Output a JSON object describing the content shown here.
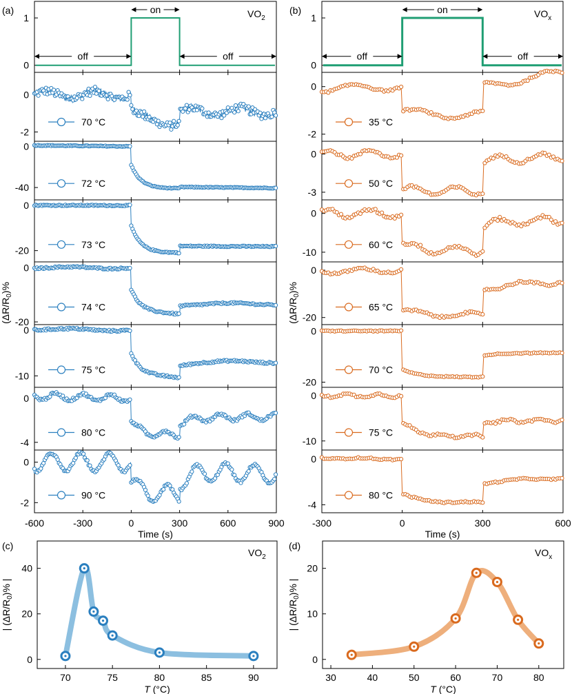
{
  "colors": {
    "vo2": "#2a7fbf",
    "vox": "#d96a1e",
    "gate": "#1f9e73",
    "vo2_line": "#8cbfe0",
    "vox_line": "#eeaf7c"
  },
  "chart_data": [
    {
      "id": "a",
      "type": "line",
      "panel_label": "(a)",
      "material": "VO",
      "material_sub": "2",
      "xlabel": "Time (s)",
      "ylabel_pre": "(ΔR/R",
      "ylabel_sub": "0",
      "ylabel_post": ")%",
      "xlim": [
        -600,
        900
      ],
      "xticks": [
        -600,
        -300,
        0,
        300,
        600,
        900
      ],
      "xtick_labels": [
        "-600",
        "-300",
        "0",
        "300",
        "600",
        "900"
      ],
      "on_window": [
        0,
        300
      ],
      "gate": {
        "ylim": [
          -0.15,
          1.35
        ],
        "yticks": [
          0,
          1
        ],
        "ytick_labels": [
          "0",
          "1"
        ],
        "labels": {
          "on": "on",
          "off": "off"
        }
      },
      "series": [
        {
          "name": "70 °C",
          "legend": "70 °C",
          "ylim": [
            -2.5,
            1.2
          ],
          "yticks": [
            0,
            -2
          ],
          "ytick_labels": [
            "0",
            "-2"
          ],
          "step_on": -0.7,
          "relax": 0.15,
          "final_on": -1.5,
          "step_off": 0.6,
          "post_relax": 0.0,
          "noise": 0.22,
          "drift": [
            0,
            0
          ],
          "wave": 0.2,
          "wave_period": 300
        },
        {
          "name": "72 °C",
          "legend": "72 °C",
          "ylim": [
            -52,
            5
          ],
          "yticks": [
            0,
            -40
          ],
          "ytick_labels": [
            "0",
            "-40"
          ],
          "step_on": -18,
          "relax": 0.22,
          "final_on": -41,
          "step_off": 1.5,
          "post_relax": 0.0,
          "noise": 0.4,
          "drift": [
            2,
            -1
          ],
          "wave": 0,
          "wave_period": 300
        },
        {
          "name": "73 °C",
          "legend": "73 °C",
          "ylim": [
            -25,
            2.5
          ],
          "yticks": [
            0,
            -20
          ],
          "ytick_labels": [
            "0",
            "-20"
          ],
          "step_on": -9,
          "relax": 0.2,
          "final_on": -21,
          "step_off": 3,
          "post_relax": 0.0,
          "noise": 0.25,
          "drift": [
            0.2,
            -0.2
          ],
          "wave": 0,
          "wave_period": 300
        },
        {
          "name": "74 °C",
          "legend": "74 °C",
          "ylim": [
            -21,
            2.2
          ],
          "yticks": [
            0,
            -20
          ],
          "ytick_labels": [
            "0",
            "-20"
          ],
          "step_on": -8,
          "relax": 0.2,
          "final_on": -17,
          "step_off": 3,
          "post_relax": 0.8,
          "noise": 0.3,
          "drift": [
            0.2,
            -0.2
          ],
          "wave": 0.3,
          "wave_period": 500
        },
        {
          "name": "75 °C",
          "legend": "75 °C",
          "ylim": [
            -12.5,
            1.2
          ],
          "yticks": [
            0,
            -10
          ],
          "ytick_labels": [
            "0",
            "-10"
          ],
          "step_on": -5,
          "relax": 0.2,
          "final_on": -10.3,
          "step_off": 2.5,
          "post_relax": 1.0,
          "noise": 0.2,
          "drift": [
            0.4,
            -0.2
          ],
          "wave": 0.2,
          "wave_period": 500
        },
        {
          "name": "80 °C",
          "legend": "80 °C",
          "ylim": [
            -4.7,
            1.0
          ],
          "yticks": [
            0,
            -4
          ],
          "ytick_labels": [
            "0",
            "-4"
          ],
          "step_on": -2.2,
          "relax": 0.25,
          "final_on": -3.3,
          "step_off": 1.0,
          "post_relax": 0.6,
          "noise": 0.12,
          "drift": [
            0.4,
            0
          ],
          "wave": 0.3,
          "wave_period": 170
        },
        {
          "name": "90 °C",
          "legend": "90 °C",
          "ylim": [
            -2.5,
            0.6
          ],
          "yticks": [
            0,
            -2
          ],
          "ytick_labels": [
            "0",
            "-2"
          ],
          "step_on": -1.0,
          "relax": 0.3,
          "final_on": -1.6,
          "step_off": 0.6,
          "post_relax": 0.6,
          "noise": 0.06,
          "drift": [
            0,
            -0.2
          ],
          "wave": 0.45,
          "wave_period": 180
        }
      ]
    },
    {
      "id": "b",
      "type": "line",
      "panel_label": "(b)",
      "material": "VO",
      "material_sub": "x",
      "xlabel": "Time (s)",
      "ylabel_pre": "(ΔR/R",
      "ylabel_sub": "0",
      "ylabel_post": ")%",
      "xlim": [
        -300,
        600
      ],
      "xticks": [
        -300,
        0,
        300,
        600
      ],
      "xtick_labels": [
        "-300",
        "0",
        "300",
        "600"
      ],
      "on_window": [
        0,
        300
      ],
      "gate": {
        "ylim": [
          -0.15,
          1.35
        ],
        "yticks": [
          0,
          1
        ],
        "ytick_labels": [
          "0",
          "1"
        ],
        "labels": {
          "on": "on",
          "off": "off"
        }
      },
      "series": [
        {
          "name": "35 °C",
          "legend": "35 °C",
          "ylim": [
            -2.3,
            0.6
          ],
          "yticks": [
            0,
            -2
          ],
          "ytick_labels": [
            "0",
            "-2"
          ],
          "step_on": -1.0,
          "relax": 0.05,
          "final_on": -1.2,
          "step_off": 1.2,
          "post_relax": 0.0,
          "noise": 0.04,
          "drift": [
            -0.2,
            0.6
          ],
          "wave": 0.15,
          "wave_period": 240
        },
        {
          "name": "50 °C",
          "legend": "50 °C",
          "ylim": [
            -3.6,
            1.0
          ],
          "yticks": [
            0,
            -3
          ],
          "ytick_labels": [
            "0",
            "-3"
          ],
          "step_on": -2.8,
          "relax": 0.0,
          "final_on": -2.9,
          "step_off": 2.4,
          "post_relax": 0.0,
          "noise": 0.1,
          "drift": [
            0,
            0.3
          ],
          "wave": 0.3,
          "wave_period": 160
        },
        {
          "name": "60 °C",
          "legend": "60 °C",
          "ylim": [
            -12.5,
            3.5
          ],
          "yticks": [
            0,
            -10
          ],
          "ytick_labels": [
            "0",
            "-10"
          ],
          "step_on": -8,
          "relax": 0.0,
          "final_on": -9.5,
          "step_off": 6.5,
          "post_relax": 1.0,
          "noise": 0.45,
          "drift": [
            0,
            0.3
          ],
          "wave": 1.0,
          "wave_period": 160
        },
        {
          "name": "65 °C",
          "legend": "65 °C",
          "ylim": [
            -23,
            3.5
          ],
          "yticks": [
            0,
            -20
          ],
          "ytick_labels": [
            "0",
            "-20"
          ],
          "step_on": -17,
          "relax": 0.0,
          "final_on": -19,
          "step_off": 11,
          "post_relax": 2.0,
          "noise": 0.5,
          "drift": [
            -1,
            1
          ],
          "wave": 1.0,
          "wave_period": 200
        },
        {
          "name": "70 °C",
          "legend": "70 °C",
          "ylim": [
            -22,
            2.5
          ],
          "yticks": [
            0,
            -20
          ],
          "ytick_labels": [
            "0",
            "-20"
          ],
          "step_on": -15,
          "relax": 0.15,
          "final_on": -18,
          "step_off": 8.5,
          "post_relax": 1.0,
          "noise": 0.2,
          "drift": [
            0,
            0
          ],
          "wave": 0,
          "wave_period": 200
        },
        {
          "name": "75 °C",
          "legend": "75 °C",
          "ylim": [
            -12,
            1.8
          ],
          "yticks": [
            0,
            -10
          ],
          "ytick_labels": [
            "0",
            "-10"
          ],
          "step_on": -6,
          "relax": 0.15,
          "final_on": -9,
          "step_off": 3,
          "post_relax": 0.5,
          "noise": 0.25,
          "drift": [
            0,
            0
          ],
          "wave": 0.3,
          "wave_period": 120
        },
        {
          "name": "80 °C",
          "legend": "80 °C",
          "ylim": [
            -4.7,
            0.8
          ],
          "yticks": [
            0,
            -4
          ],
          "ytick_labels": [
            "0",
            "-4"
          ],
          "step_on": -3.0,
          "relax": 0.25,
          "final_on": -3.8,
          "step_off": 1.6,
          "post_relax": 0.5,
          "noise": 0.06,
          "drift": [
            0.2,
            0
          ],
          "wave": 0.05,
          "wave_period": 200
        }
      ]
    },
    {
      "id": "c",
      "type": "scatter",
      "panel_label": "(c)",
      "material": "VO",
      "material_sub": "2",
      "xlabel_italic": "T",
      "xlabel_rest": " (°C)",
      "ylabel_pre": "| (ΔR/R",
      "ylabel_sub": "0",
      "ylabel_post": ")% |",
      "x": [
        70,
        72,
        73,
        74,
        75,
        80,
        90
      ],
      "y": [
        1.5,
        40,
        21,
        17,
        10.5,
        3,
        1.5
      ],
      "xlim": [
        67,
        92.5
      ],
      "ylim": [
        -4,
        52
      ],
      "xticks": [
        70,
        75,
        80,
        85,
        90
      ],
      "xtick_labels": [
        "70",
        "75",
        "80",
        "85",
        "90"
      ],
      "yticks": [
        0,
        20,
        40
      ],
      "ytick_labels": [
        "0",
        "20",
        "40"
      ]
    },
    {
      "id": "d",
      "type": "scatter",
      "panel_label": "(d)",
      "material": "VO",
      "material_sub": "x",
      "xlabel_italic": "T",
      "xlabel_rest": " (°C)",
      "ylabel_pre": "| (ΔR/R",
      "ylabel_sub": "0",
      "ylabel_post": ")% |",
      "x": [
        35,
        50,
        60,
        65,
        70,
        75,
        80
      ],
      "y": [
        1,
        2.8,
        9,
        19,
        17,
        8.7,
        3.5
      ],
      "xlim": [
        28,
        86
      ],
      "ylim": [
        -2,
        26
      ],
      "xticks": [
        30,
        40,
        50,
        60,
        70,
        80
      ],
      "xtick_labels": [
        "30",
        "40",
        "50",
        "60",
        "70",
        "80"
      ],
      "yticks": [
        0,
        10,
        20
      ],
      "ytick_labels": [
        "0",
        "10",
        "20"
      ]
    }
  ]
}
